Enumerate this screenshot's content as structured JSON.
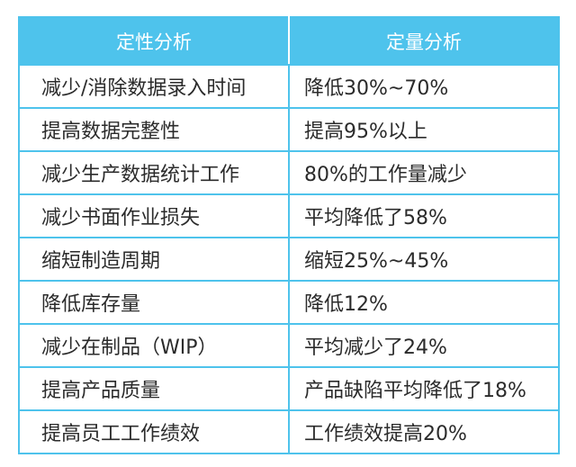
{
  "table": {
    "headers": [
      "定性分析",
      "定量分析"
    ],
    "rows": [
      [
        "减少/消除数据录入时间",
        "降低30%~70%"
      ],
      [
        "提高数据完整性",
        "提高95%以上"
      ],
      [
        "减少生产数据统计工作",
        "80%的工作量减少"
      ],
      [
        "减少书面作业损失",
        "平均降低了58%"
      ],
      [
        "缩短制造周期",
        "缩短25%~45%"
      ],
      [
        "降低库存量",
        "降低12%"
      ],
      [
        "减少在制品（WIP）",
        "平均减少了24%"
      ],
      [
        "提高产品质量",
        "产品缺陷平均降低了18%"
      ],
      [
        "提高员工工作绩效",
        "工作绩效提高20%"
      ]
    ]
  },
  "colors": {
    "header_bg": "#4ec3ec",
    "border": "#4ec3ec",
    "text": "#2b2b2b"
  }
}
